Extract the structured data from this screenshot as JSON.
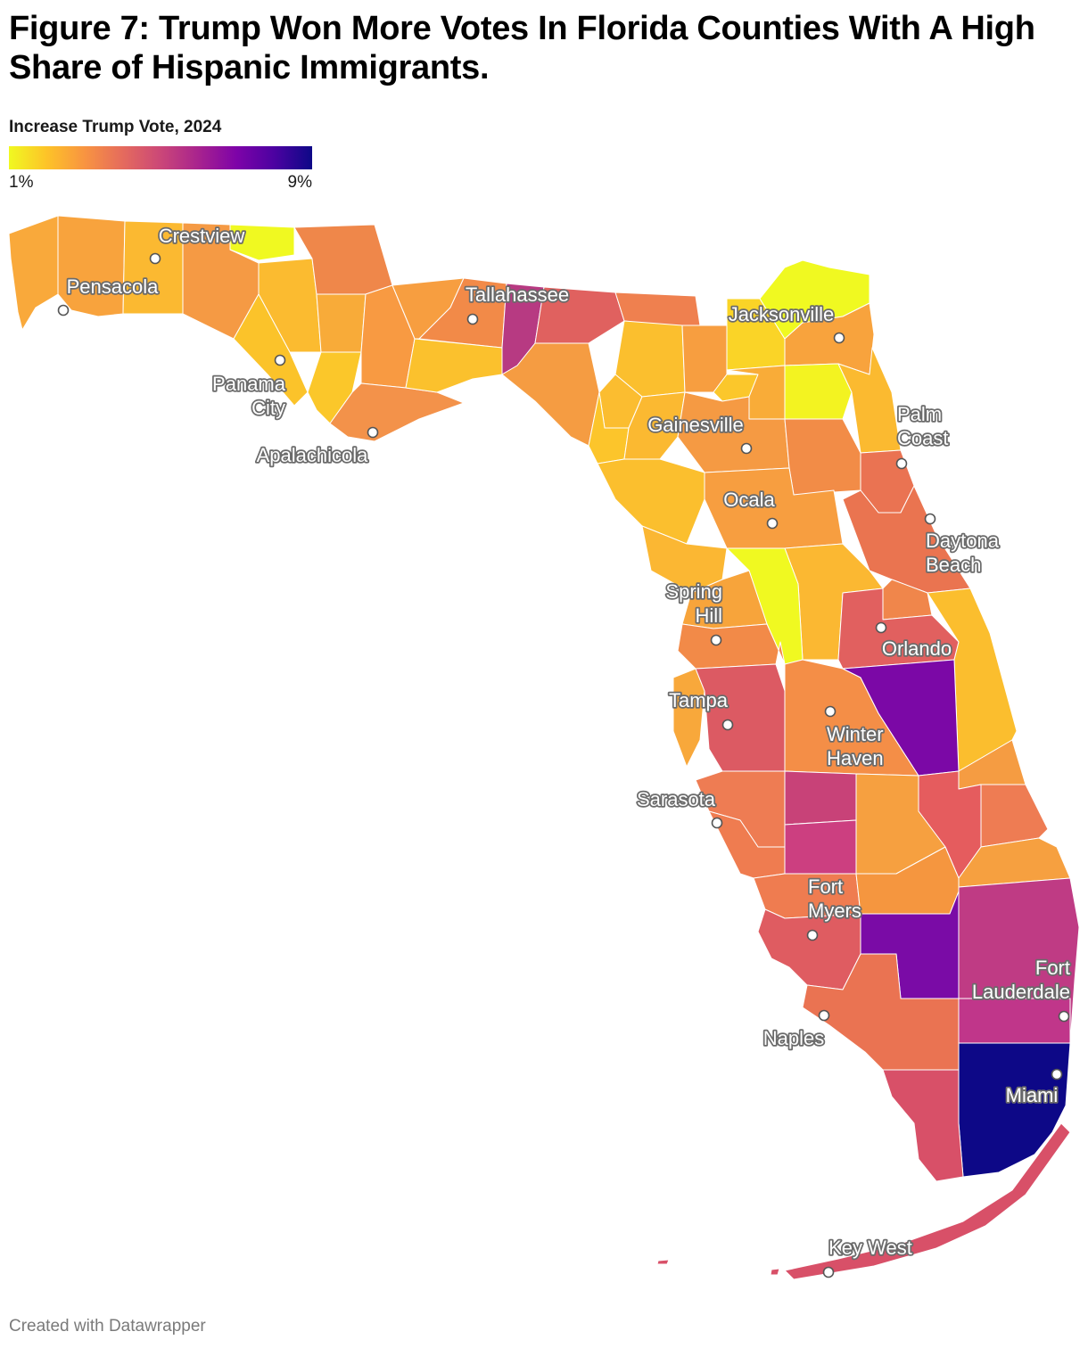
{
  "title": "Figure 7: Trump Won More Votes In Florida Counties With A High Share of Hispanic Immigrants.",
  "legend": {
    "title": "Increase Trump Vote, 2024",
    "min_label": "1%",
    "max_label": "9%",
    "scale": [
      "#f0f921",
      "#fdc328",
      "#f89441",
      "#e56b5d",
      "#cb4778",
      "#a8238e",
      "#7e03a8",
      "#4c02a1",
      "#0d0887"
    ]
  },
  "cities": [
    {
      "name": "Crestview"
    },
    {
      "name": "Pensacola"
    },
    {
      "name": "Tallahassee"
    },
    {
      "name": "Jacksonville"
    },
    {
      "name": "Panama City"
    },
    {
      "name": "Apalachicola"
    },
    {
      "name": "Gainesville"
    },
    {
      "name": "Palm Coast"
    },
    {
      "name": "Ocala"
    },
    {
      "name": "Daytona Beach"
    },
    {
      "name": "Spring Hill"
    },
    {
      "name": "Orlando"
    },
    {
      "name": "Tampa"
    },
    {
      "name": "Winter Haven"
    },
    {
      "name": "Sarasota"
    },
    {
      "name": "Fort Myers"
    },
    {
      "name": "Fort Lauderdale"
    },
    {
      "name": "Naples"
    },
    {
      "name": "Miami"
    },
    {
      "name": "Key West"
    }
  ],
  "footer": "Created with Datawrapper"
}
